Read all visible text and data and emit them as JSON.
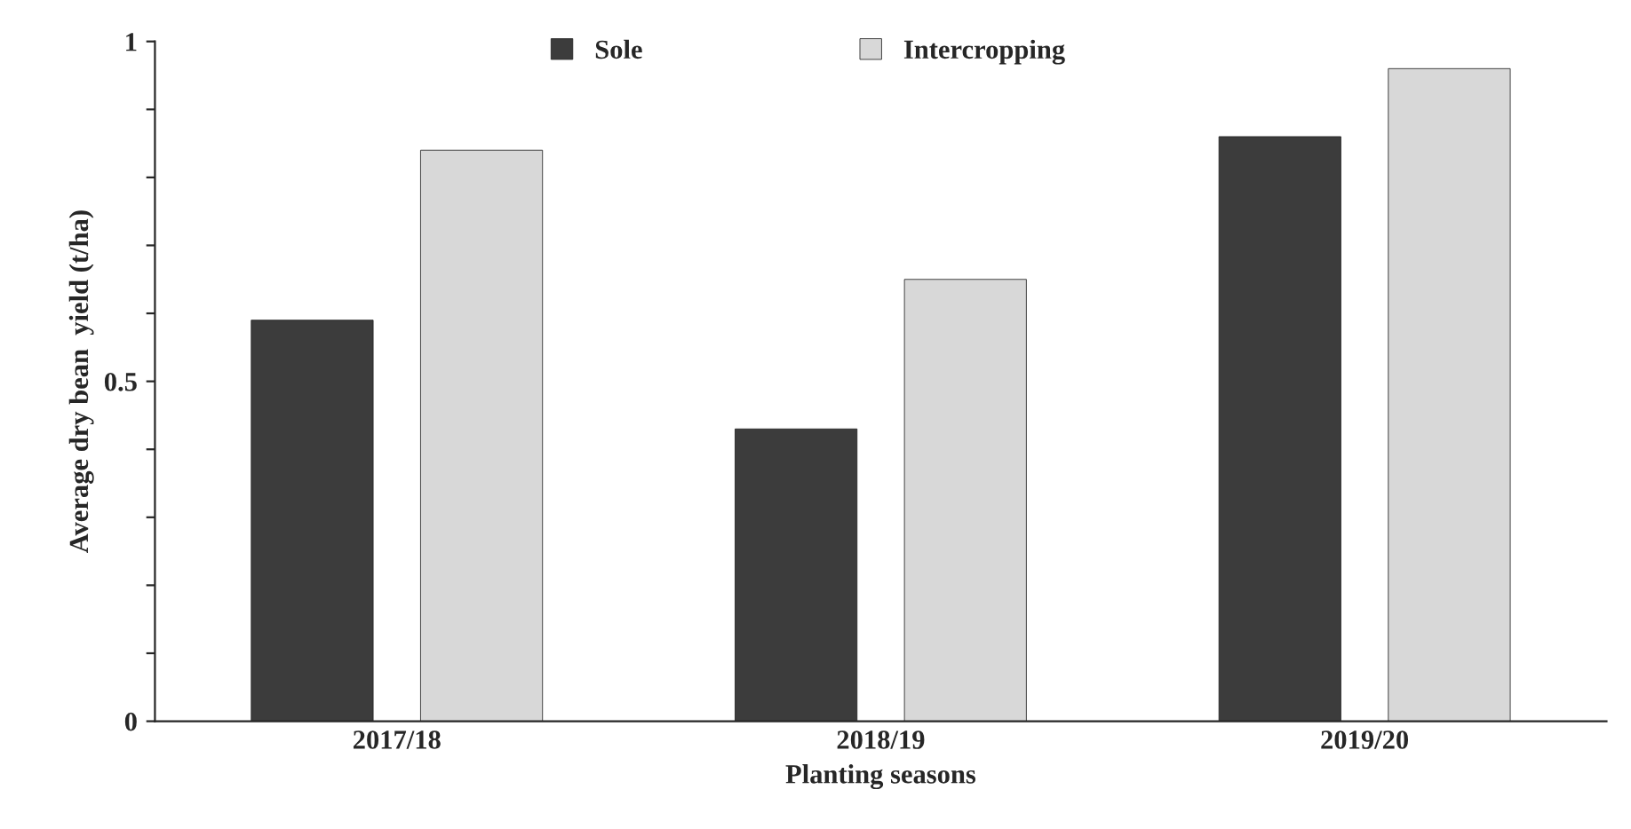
{
  "chart_data": {
    "type": "bar",
    "xlabel": "Planting seasons",
    "ylabel": "Average dry bean  yield (t/ha)",
    "categories": [
      "2017/18",
      "2018/19",
      "2019/20"
    ],
    "series": [
      {
        "name": "Sole",
        "color": "#3c3c3c",
        "values": [
          0.59,
          0.43,
          0.86
        ]
      },
      {
        "name": "Intercropping",
        "color": "#d8d8d8",
        "values": [
          0.84,
          0.65,
          0.96
        ]
      }
    ],
    "ylim": [
      0,
      1
    ],
    "yticks": [
      0,
      {
        "value": 0.1,
        "label": null
      },
      {
        "value": 0.2,
        "label": null
      },
      {
        "value": 0.3,
        "label": null
      },
      {
        "value": 0.4,
        "label": null
      },
      0.5,
      {
        "value": 0.6,
        "label": null
      },
      {
        "value": 0.7,
        "label": null
      },
      {
        "value": 0.8,
        "label": null
      },
      {
        "value": 0.9,
        "label": null
      },
      1
    ],
    "grid": false,
    "legend": "top"
  }
}
